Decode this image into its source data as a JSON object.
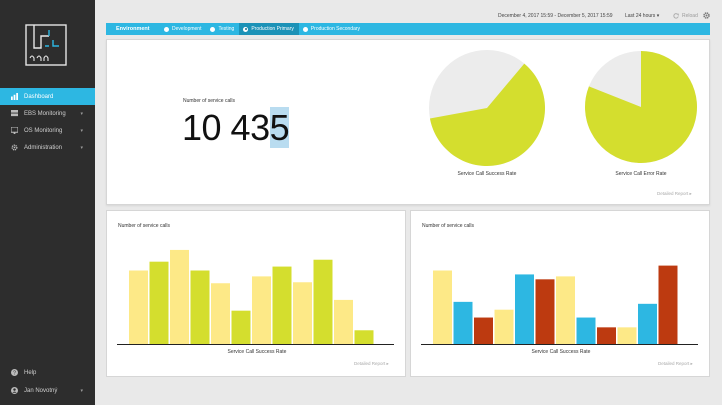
{
  "sidebar": {
    "items": [
      {
        "label": "Dashboard",
        "icon": "dashboard-icon",
        "active": true
      },
      {
        "label": "EBS Monitoring",
        "icon": "server-icon",
        "has_submenu": true
      },
      {
        "label": "OS Monitoring",
        "icon": "monitor-icon",
        "has_submenu": true
      },
      {
        "label": "Administration",
        "icon": "gear-icon",
        "has_submenu": true
      }
    ],
    "bottom": [
      {
        "label": "Help",
        "icon": "help-icon"
      },
      {
        "label": "Jan Novotný",
        "icon": "user-icon",
        "has_submenu": true
      }
    ]
  },
  "topbar": {
    "date_range": "December 4, 2017 15:59 - December 5, 2017 15:59",
    "period": "Last 24 hours",
    "refresh": "Reload"
  },
  "environment": {
    "title": "Environment",
    "options": [
      {
        "label": "Development",
        "selected": false
      },
      {
        "label": "Testing",
        "selected": false
      },
      {
        "label": "Production Primary",
        "selected": true
      },
      {
        "label": "Production Secondary",
        "selected": false
      }
    ]
  },
  "summary": {
    "stat_label": "Number of service calls",
    "stat_value_main": "10 43",
    "stat_value_highlight": "5",
    "pies": [
      {
        "caption": "Service Call Success Rate",
        "fraction": 0.61
      },
      {
        "caption": "Service Call Error Rate",
        "fraction": 0.81
      }
    ],
    "detail_link": "Detailed Report"
  },
  "charts": [
    {
      "title": "Number of service calls",
      "xlabel": "Service Call Success Rate",
      "detail_link": "Detailed Report",
      "values": [
        75,
        84,
        96,
        75,
        62,
        34,
        69,
        79,
        63,
        86,
        45,
        14
      ],
      "colors": [
        "#fde987",
        "#d4de2e",
        "#fde987",
        "#d4de2e",
        "#fde987",
        "#d4de2e",
        "#fde987",
        "#d4de2e",
        "#fde987",
        "#d4de2e",
        "#fde987",
        "#d4de2e"
      ]
    },
    {
      "title": "Number of service calls",
      "xlabel": "Service Call Success Rate",
      "detail_link": "Detailed Report",
      "values": [
        75,
        43,
        27,
        35,
        71,
        66,
        69,
        27,
        17,
        17,
        41,
        80
      ],
      "colors": [
        "#fde987",
        "#2db7e2",
        "#bd3a10",
        "#fde987",
        "#2db7e2",
        "#bd3a10",
        "#fde987",
        "#2db7e2",
        "#bd3a10",
        "#fde987",
        "#2db7e2",
        "#bd3a10"
      ]
    }
  ],
  "colors": {
    "accent": "#2db7e2",
    "pie_fill": "#d4de2e",
    "pie_rest": "#ececec",
    "sidebar_bg": "#2d2d2d"
  }
}
